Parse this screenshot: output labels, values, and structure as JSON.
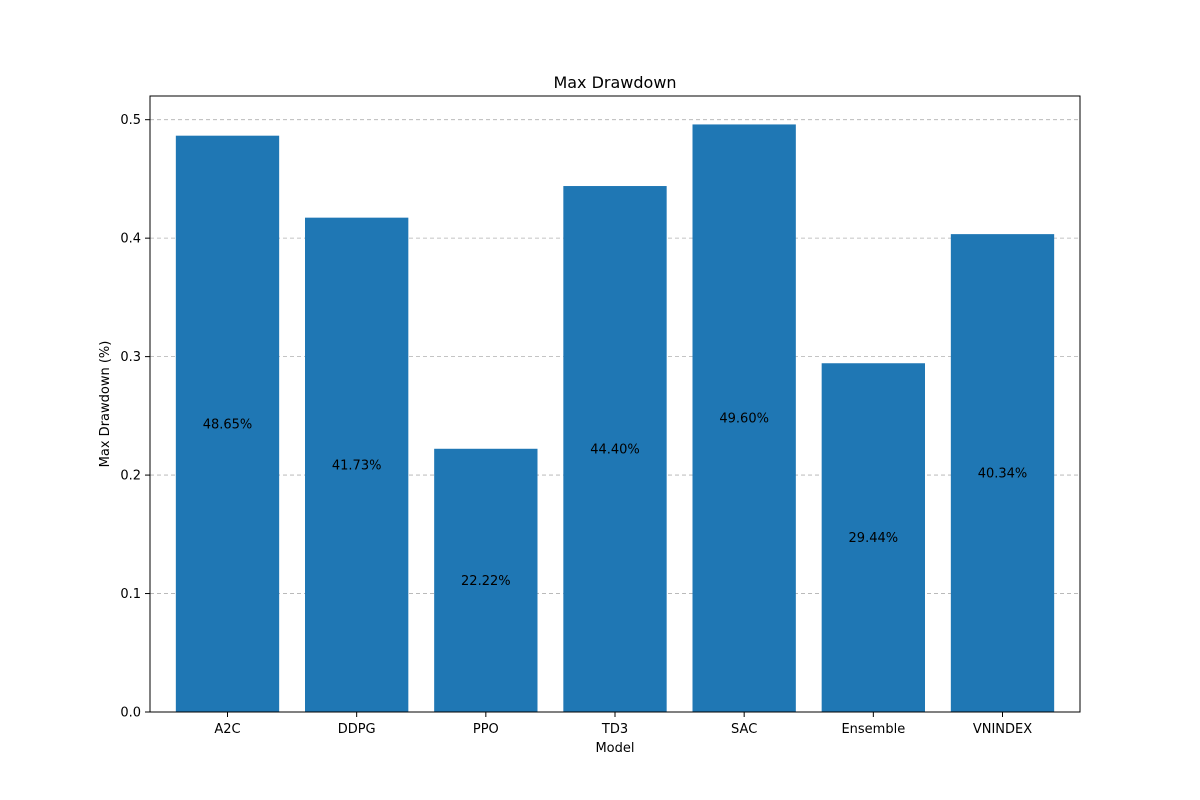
{
  "chart_data": {
    "type": "bar",
    "title": "Max Drawdown",
    "xlabel": "Model",
    "ylabel": "Max Drawdown (%)",
    "categories": [
      "A2C",
      "DDPG",
      "PPO",
      "TD3",
      "SAC",
      "Ensemble",
      "VNINDEX"
    ],
    "values": [
      0.4865,
      0.4173,
      0.2222,
      0.444,
      0.496,
      0.2944,
      0.4034
    ],
    "data_labels": [
      "48.65%",
      "41.73%",
      "22.22%",
      "44.40%",
      "49.60%",
      "29.44%",
      "40.34%"
    ],
    "ylim": [
      0,
      0.52
    ],
    "yticks": [
      0.0,
      0.1,
      0.2,
      0.3,
      0.4,
      0.5
    ],
    "ytick_labels": [
      "0.0",
      "0.1",
      "0.2",
      "0.3",
      "0.4",
      "0.5"
    ],
    "grid": "y-dashed",
    "bar_color": "#1f77b4"
  }
}
